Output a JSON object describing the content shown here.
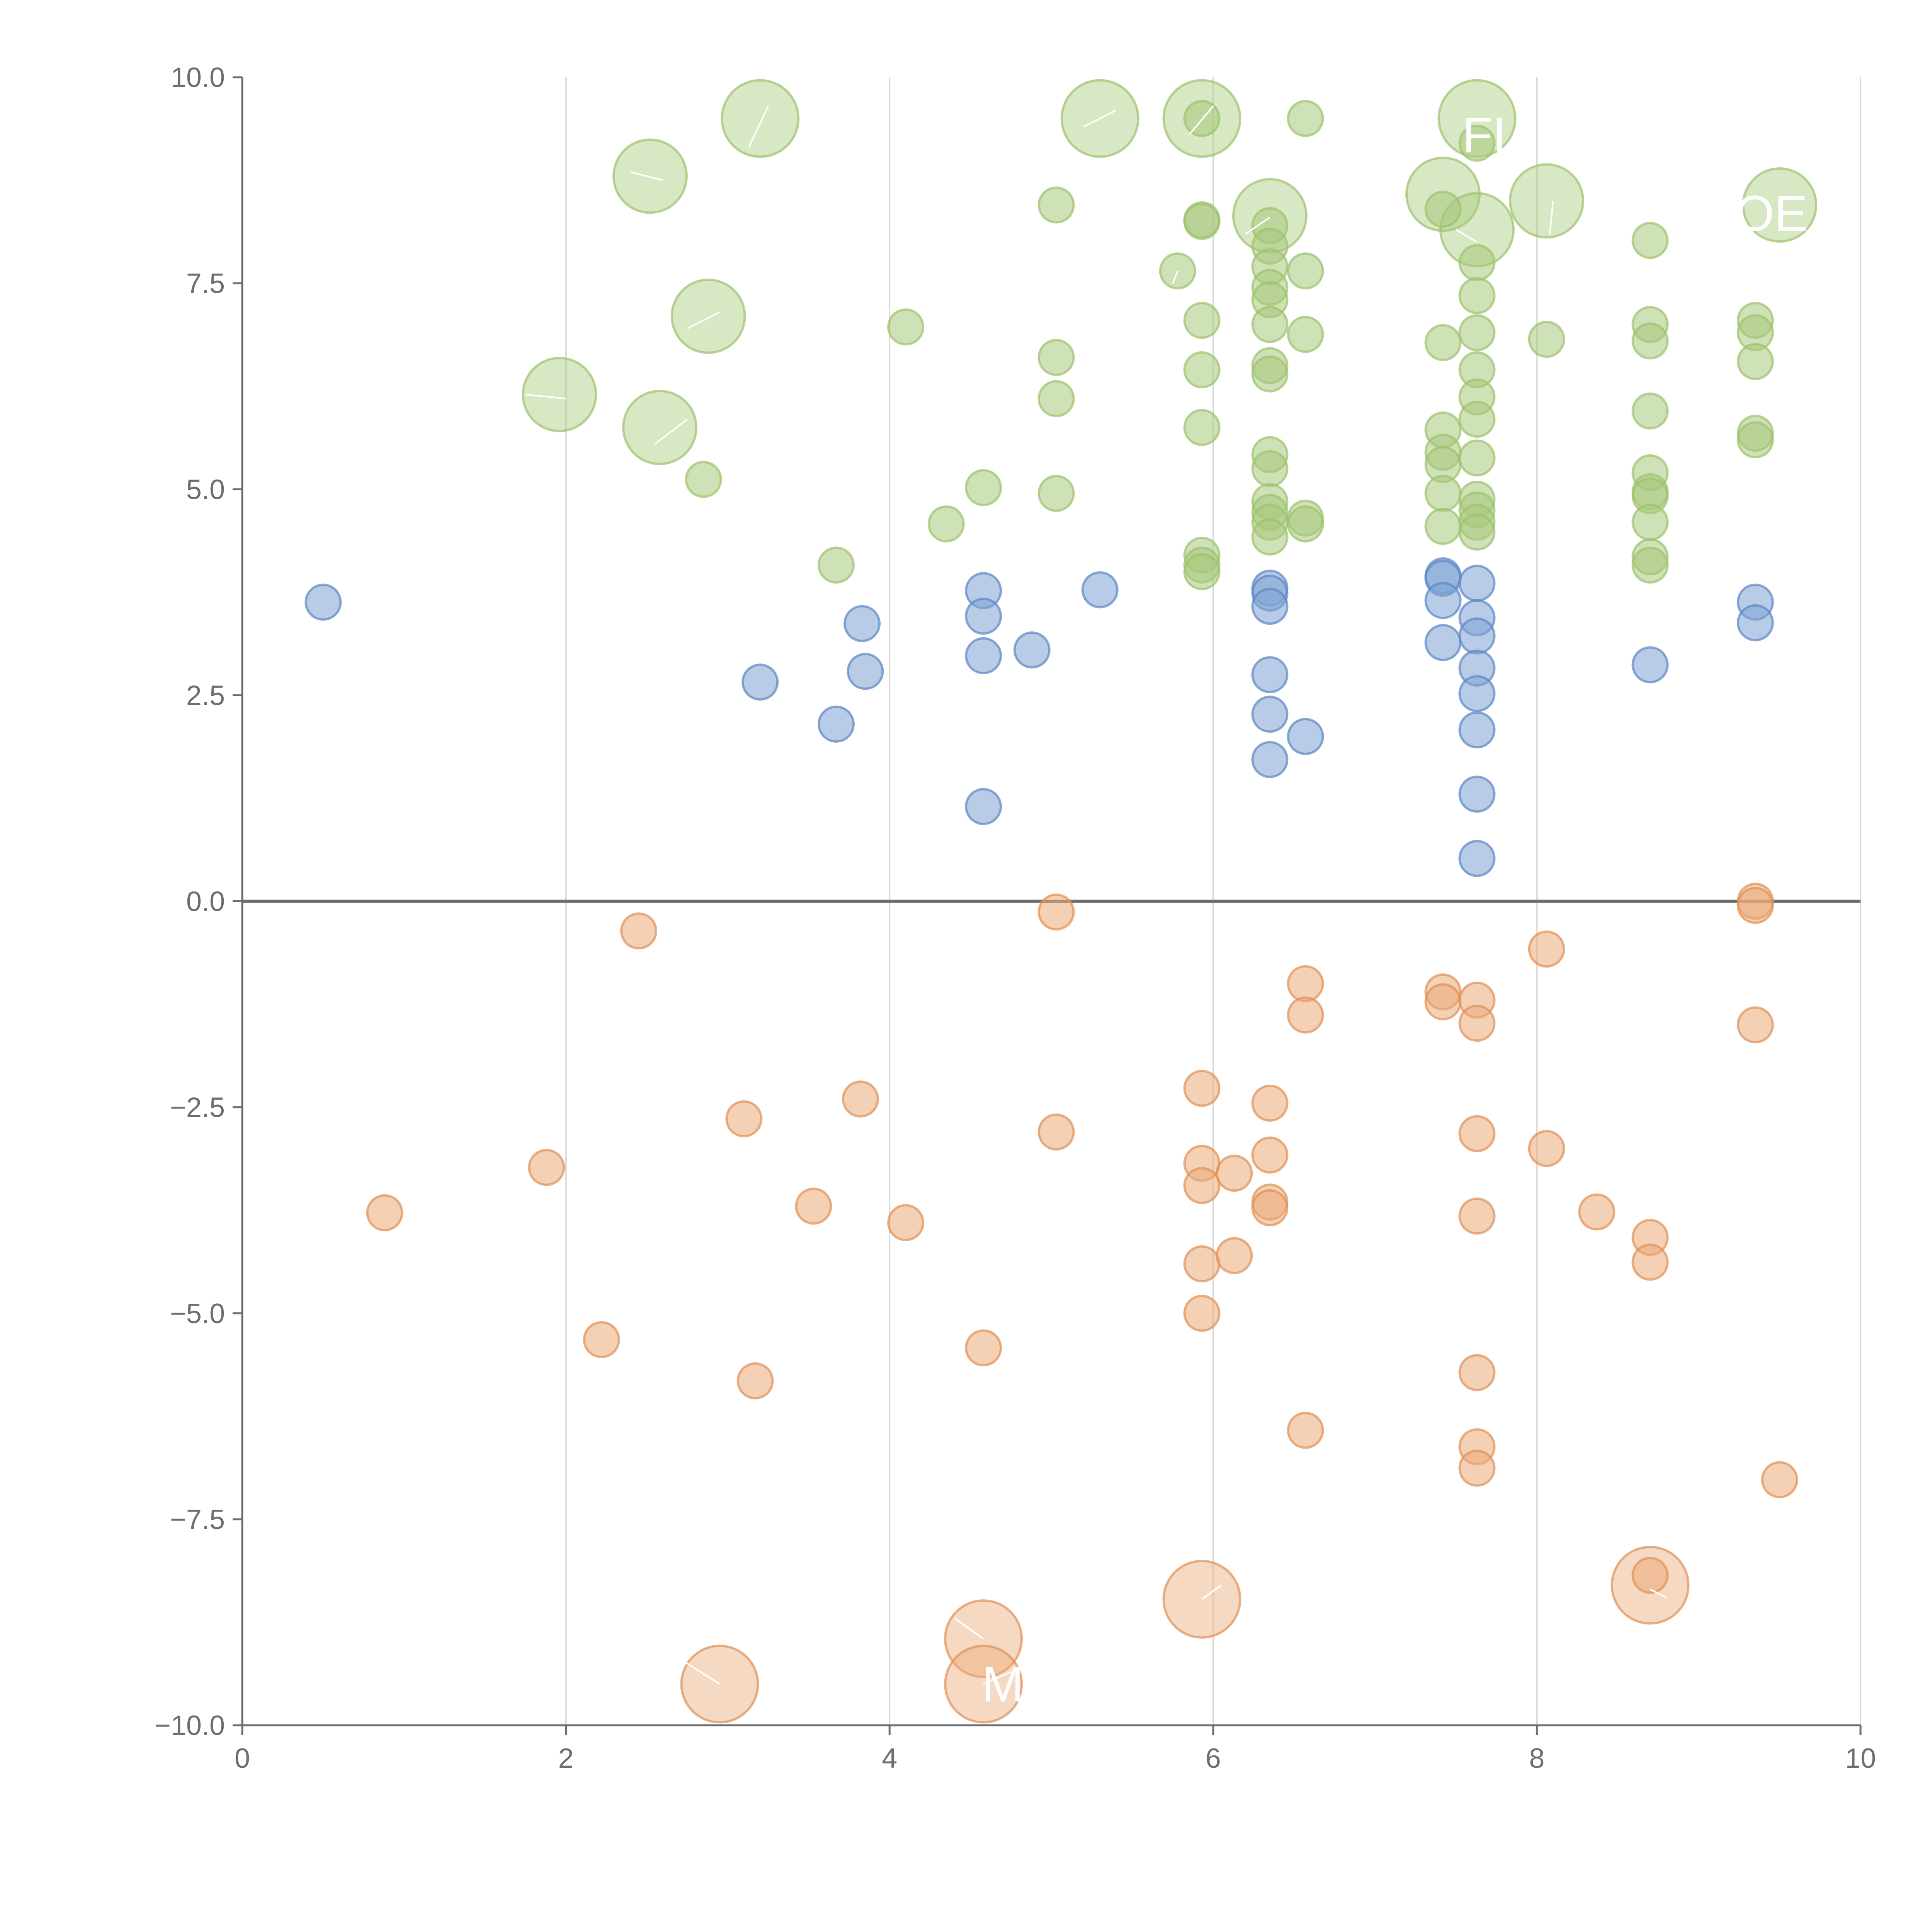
{
  "chart_data": {
    "type": "scatter",
    "title": "",
    "xlabel": "",
    "ylabel": "",
    "xlim": [
      0,
      10
    ],
    "ylim": [
      -10,
      10
    ],
    "x_ticks": [
      0,
      2,
      4,
      6,
      8,
      10
    ],
    "y_ticks": [
      10,
      7.5,
      5,
      2.5,
      0,
      -2.5,
      -5,
      -7.5,
      -10
    ],
    "x_tick_labels": [
      "0",
      "2",
      "4",
      "6",
      "8",
      "10"
    ],
    "y_tick_labels": [
      "10.0",
      "7.5",
      "5.0",
      "2.5",
      "0.0",
      "−2.5",
      "−5.0",
      "−7.5",
      "−10.0"
    ],
    "grid": "vertical lines at x ticks",
    "legend": "none",
    "colors": {
      "green": "#a8c97c",
      "green_stroke": "#9cc26c",
      "blue": "#7ea2d4",
      "blue_stroke": "#5d86c4",
      "orange": "#ebaa79",
      "orange_stroke": "#e09055",
      "axis": "#6e6e6e",
      "grid": "#d9d9d9"
    },
    "series": [
      {
        "name": "green",
        "points": [
          [
            3.2,
            9.5,
            2.2
          ],
          [
            5.3,
            9.5,
            2.2
          ],
          [
            5.93,
            9.5,
            2.2
          ],
          [
            5.93,
            9.5,
            1
          ],
          [
            6.57,
            9.5,
            1
          ],
          [
            7.63,
            9.5,
            2.2
          ],
          [
            7.63,
            9.2,
            1
          ],
          [
            2.52,
            8.8,
            2.1
          ],
          [
            5.03,
            8.45,
            1
          ],
          [
            7.42,
            8.58,
            2.1
          ],
          [
            8.06,
            8.5,
            2.1
          ],
          [
            9.5,
            8.45,
            2.1
          ],
          [
            5.93,
            8.27,
            1
          ],
          [
            5.93,
            8.25,
            1
          ],
          [
            6.35,
            8.32,
            2.1
          ],
          [
            6.35,
            8.2,
            1
          ],
          [
            6.35,
            7.95,
            1
          ],
          [
            7.63,
            8.15,
            2.1
          ],
          [
            7.42,
            8.4,
            1
          ],
          [
            8.7,
            8.02,
            1
          ],
          [
            5.78,
            7.65,
            1
          ],
          [
            6.35,
            7.7,
            1
          ],
          [
            6.57,
            7.65,
            1
          ],
          [
            7.63,
            7.75,
            1
          ],
          [
            7.63,
            7.35,
            1
          ],
          [
            6.35,
            7.45,
            1
          ],
          [
            6.35,
            7.3,
            1
          ],
          [
            2.88,
            7.1,
            2.1
          ],
          [
            4.1,
            6.97,
            1
          ],
          [
            5.93,
            7.05,
            1
          ],
          [
            6.35,
            7.0,
            1
          ],
          [
            7.63,
            6.9,
            1
          ],
          [
            8.7,
            7.0,
            1
          ],
          [
            8.7,
            6.8,
            1
          ],
          [
            9.35,
            7.05,
            1
          ],
          [
            9.35,
            6.9,
            1
          ],
          [
            6.57,
            6.88,
            1
          ],
          [
            7.42,
            6.78,
            1
          ],
          [
            8.06,
            6.82,
            1
          ],
          [
            5.03,
            6.6,
            1
          ],
          [
            5.93,
            6.45,
            1
          ],
          [
            6.35,
            6.5,
            1
          ],
          [
            6.35,
            6.4,
            1
          ],
          [
            7.63,
            6.45,
            1
          ],
          [
            9.35,
            6.55,
            1
          ],
          [
            1.96,
            6.15,
            2.1
          ],
          [
            5.03,
            6.1,
            1
          ],
          [
            7.63,
            6.12,
            1
          ],
          [
            8.7,
            5.95,
            1
          ],
          [
            7.63,
            5.85,
            1
          ],
          [
            2.58,
            5.75,
            2.1
          ],
          [
            5.93,
            5.75,
            1
          ],
          [
            7.42,
            5.72,
            1
          ],
          [
            9.35,
            5.68,
            1
          ],
          [
            9.35,
            5.6,
            1
          ],
          [
            6.35,
            5.42,
            1
          ],
          [
            6.35,
            5.25,
            1
          ],
          [
            7.42,
            5.45,
            1
          ],
          [
            7.42,
            5.3,
            1
          ],
          [
            7.63,
            5.38,
            1
          ],
          [
            8.7,
            5.2,
            1
          ],
          [
            2.85,
            5.12,
            1
          ],
          [
            4.58,
            5.02,
            1
          ],
          [
            5.03,
            4.95,
            1
          ],
          [
            7.42,
            4.95,
            1
          ],
          [
            8.7,
            4.97,
            1
          ],
          [
            8.7,
            4.92,
            1
          ],
          [
            6.35,
            4.85,
            1
          ],
          [
            6.35,
            4.72,
            1
          ],
          [
            7.63,
            4.88,
            1
          ],
          [
            7.63,
            4.75,
            1
          ],
          [
            6.57,
            4.65,
            1
          ],
          [
            6.57,
            4.58,
            1
          ],
          [
            4.35,
            4.58,
            1
          ],
          [
            6.35,
            4.6,
            1
          ],
          [
            6.35,
            4.42,
            1
          ],
          [
            7.42,
            4.55,
            1
          ],
          [
            7.63,
            4.6,
            1
          ],
          [
            7.63,
            4.48,
            1
          ],
          [
            8.7,
            4.6,
            1
          ],
          [
            5.93,
            4.2,
            1
          ],
          [
            5.93,
            4.08,
            1
          ],
          [
            5.93,
            4.0,
            1
          ],
          [
            8.7,
            4.18,
            1
          ],
          [
            8.7,
            4.08,
            1
          ],
          [
            3.67,
            4.08,
            1
          ]
        ]
      },
      {
        "name": "blue",
        "points": [
          [
            0.5,
            3.63,
            1
          ],
          [
            3.2,
            2.66,
            1
          ],
          [
            3.67,
            2.15,
            1
          ],
          [
            3.83,
            3.37,
            1
          ],
          [
            3.85,
            2.79,
            1
          ],
          [
            4.58,
            3.77,
            1
          ],
          [
            4.58,
            3.46,
            1
          ],
          [
            4.58,
            2.98,
            1
          ],
          [
            4.58,
            1.15,
            1
          ],
          [
            4.88,
            3.05,
            1
          ],
          [
            5.3,
            3.78,
            1
          ],
          [
            6.35,
            3.8,
            1
          ],
          [
            6.35,
            3.74,
            1
          ],
          [
            6.35,
            3.58,
            1
          ],
          [
            6.35,
            2.75,
            1
          ],
          [
            6.35,
            2.27,
            1
          ],
          [
            6.35,
            1.72,
            1
          ],
          [
            6.57,
            2.0,
            1
          ],
          [
            7.42,
            3.95,
            1
          ],
          [
            7.42,
            3.92,
            1
          ],
          [
            7.42,
            3.65,
            1
          ],
          [
            7.42,
            3.14,
            1
          ],
          [
            7.63,
            3.86,
            1
          ],
          [
            7.63,
            3.44,
            1
          ],
          [
            7.63,
            3.22,
            1
          ],
          [
            7.63,
            2.83,
            1
          ],
          [
            7.63,
            2.52,
            1
          ],
          [
            7.63,
            2.08,
            1
          ],
          [
            7.63,
            1.3,
            1
          ],
          [
            7.63,
            0.52,
            1
          ],
          [
            8.7,
            2.87,
            1
          ],
          [
            9.35,
            3.63,
            1
          ],
          [
            9.35,
            3.38,
            1
          ]
        ]
      },
      {
        "name": "orange",
        "points": [
          [
            2.45,
            -0.36,
            1
          ],
          [
            5.03,
            -0.13,
            1
          ],
          [
            9.35,
            0.0,
            1
          ],
          [
            9.35,
            -0.05,
            1
          ],
          [
            8.06,
            -0.58,
            1
          ],
          [
            6.57,
            -1.0,
            1
          ],
          [
            6.57,
            -1.38,
            1
          ],
          [
            7.42,
            -1.1,
            1
          ],
          [
            7.42,
            -1.22,
            1
          ],
          [
            7.63,
            -1.2,
            1
          ],
          [
            7.63,
            -1.48,
            1
          ],
          [
            9.35,
            -1.5,
            1
          ],
          [
            5.93,
            -2.27,
            1
          ],
          [
            6.35,
            -2.45,
            1
          ],
          [
            3.82,
            -2.4,
            1
          ],
          [
            3.1,
            -2.64,
            1
          ],
          [
            5.03,
            -2.8,
            1
          ],
          [
            7.63,
            -2.82,
            1
          ],
          [
            8.06,
            -3.0,
            1
          ],
          [
            1.88,
            -3.23,
            1
          ],
          [
            5.93,
            -3.18,
            1
          ],
          [
            6.13,
            -3.3,
            1
          ],
          [
            6.35,
            -3.08,
            1
          ],
          [
            5.93,
            -3.45,
            1
          ],
          [
            0.88,
            -3.78,
            1
          ],
          [
            3.53,
            -3.7,
            1
          ],
          [
            4.1,
            -3.9,
            1
          ],
          [
            6.35,
            -3.65,
            1
          ],
          [
            6.35,
            -3.72,
            1
          ],
          [
            7.63,
            -3.82,
            1
          ],
          [
            8.37,
            -3.77,
            1
          ],
          [
            8.7,
            -4.08,
            1
          ],
          [
            8.7,
            -4.38,
            1
          ],
          [
            5.93,
            -4.4,
            1
          ],
          [
            6.13,
            -4.3,
            1
          ],
          [
            5.93,
            -5.0,
            1
          ],
          [
            2.22,
            -5.32,
            1
          ],
          [
            4.58,
            -5.42,
            1
          ],
          [
            3.17,
            -5.82,
            1
          ],
          [
            7.63,
            -5.72,
            1
          ],
          [
            6.57,
            -6.42,
            1
          ],
          [
            7.63,
            -6.62,
            1
          ],
          [
            7.63,
            -6.88,
            1
          ],
          [
            9.5,
            -7.02,
            1
          ],
          [
            5.93,
            -8.47,
            2.2
          ],
          [
            8.7,
            -8.3,
            2.2
          ],
          [
            8.7,
            -8.18,
            1
          ],
          [
            4.58,
            -8.95,
            2.2
          ],
          [
            2.95,
            -9.5,
            2.2
          ],
          [
            4.58,
            -9.5,
            2.2
          ]
        ]
      }
    ],
    "annotations": [
      "FL",
      "OE",
      "M"
    ]
  }
}
